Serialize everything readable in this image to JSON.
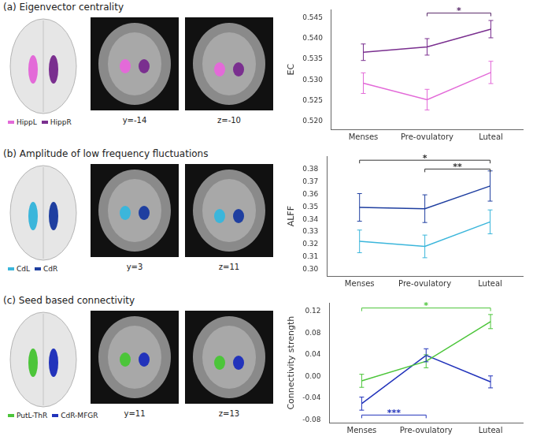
{
  "chart_data": [
    {
      "type": "line",
      "title": "(a) Eigenvector centrality",
      "slices": [
        "y=-14",
        "z=-10"
      ],
      "categories": [
        "Menses",
        "Pre-ovulatory",
        "Luteal"
      ],
      "y_label": "EC",
      "series": [
        {
          "name": "HippL",
          "color": "#e36ad8",
          "values": [
            0.5292,
            0.5252,
            0.5318
          ],
          "errors": [
            0.0025,
            0.0025,
            0.0027
          ]
        },
        {
          "name": "HippR",
          "color": "#7a2f8f",
          "values": [
            0.5367,
            0.538,
            0.5423
          ],
          "errors": [
            0.002,
            0.002,
            0.0021
          ]
        }
      ],
      "ylim": [
        0.518,
        0.547
      ],
      "yticks": [
        {
          "value": 0.52,
          "label": "0.520"
        },
        0.525,
        {
          "value": 0.53,
          "label": "0.530"
        },
        0.535,
        {
          "value": 0.54,
          "label": "0.540"
        },
        0.545
      ],
      "grid": false,
      "significance": [
        {
          "from": "Pre-ovulatory",
          "to": "Luteal",
          "y": 0.5462,
          "label": "*",
          "color": "#5a2a6a"
        }
      ]
    },
    {
      "type": "line",
      "title": "(b) Amplitude of low frequency fluctuations",
      "slices": [
        "y=3",
        "z=11"
      ],
      "categories": [
        "Menses",
        "Pre-ovulatory",
        "Luteal"
      ],
      "y_label": "ALFF",
      "series": [
        {
          "name": "CdL",
          "color": "#3bb6db",
          "values": [
            0.3225,
            0.3185,
            0.338
          ],
          "errors": [
            0.009,
            0.009,
            0.0095
          ]
        },
        {
          "name": "CdR",
          "color": "#1f3fa0",
          "values": [
            0.3495,
            0.3485,
            0.3665
          ],
          "errors": [
            0.011,
            0.011,
            0.012
          ]
        }
      ],
      "ylim": [
        0.295,
        0.39
      ],
      "yticks": [
        {
          "value": 0.3,
          "label": "0.30"
        },
        0.31,
        0.32,
        0.33,
        0.34,
        0.35,
        0.36,
        0.37,
        0.38
      ],
      "grid": false,
      "significance": [
        {
          "from": "Menses",
          "to": "Luteal",
          "y": 0.387,
          "label": "*",
          "color": "#333333"
        },
        {
          "from": "Pre-ovulatory",
          "to": "Luteal",
          "y": 0.38,
          "label": "**",
          "color": "#333333"
        }
      ]
    },
    {
      "type": "line",
      "title": "(c) Seed based connectivity",
      "slices": [
        "y=11",
        "z=13"
      ],
      "categories": [
        "Menses",
        "Pre-ovulatory",
        "Luteal"
      ],
      "y_label": "Connectivity strength",
      "series": [
        {
          "name": "PutL-ThR",
          "color": "#4cc53a",
          "values": [
            -0.008,
            0.028,
            0.101
          ],
          "errors": [
            0.012,
            0.012,
            0.013
          ]
        },
        {
          "name": "CdR-MFGR",
          "color": "#2233bb",
          "values": [
            -0.05,
            0.039,
            -0.01
          ],
          "errors": [
            0.012,
            0.012,
            0.011
          ]
        }
      ],
      "ylim": [
        -0.085,
        0.135
      ],
      "yticks": [
        -0.08,
        -0.04,
        {
          "value": 0,
          "label": "0.00"
        },
        0.04,
        0.08,
        0.12
      ],
      "grid": false,
      "significance": [
        {
          "from": "Menses",
          "to": "Luteal",
          "y": 0.126,
          "label": "*",
          "color": "#4cc53a"
        },
        {
          "from": "Menses",
          "to": "Pre-ovulatory",
          "y": -0.071,
          "label": "***",
          "color": "#2233bb"
        }
      ]
    }
  ]
}
